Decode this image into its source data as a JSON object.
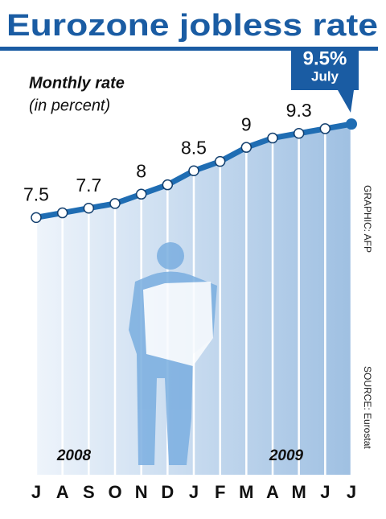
{
  "chart_data": {
    "type": "line",
    "title": "Eurozone jobless rate",
    "subtitle": "Monthly rate",
    "unit_note": "(in percent)",
    "annotation": "July",
    "years": [
      "2008",
      "2009"
    ],
    "source": "SOURCE: Eurostat",
    "credit": "GRAPHIC: AFP",
    "categories": [
      "J",
      "A",
      "S",
      "O",
      "N",
      "D",
      "J",
      "F",
      "M",
      "A",
      "M",
      "J",
      "J"
    ],
    "series": [
      {
        "name": "Jobless rate",
        "color": "#1f6db3",
        "values": [
          7.5,
          7.6,
          7.7,
          7.8,
          8.0,
          8.2,
          8.5,
          8.7,
          9.0,
          9.2,
          9.3,
          9.4,
          9.5
        ],
        "value_labels": [
          "7.5",
          null,
          "7.7",
          null,
          "8",
          null,
          "8.5",
          null,
          "9",
          null,
          "9.3",
          null,
          "9.5%"
        ]
      }
    ],
    "ylim": [
      2,
      10.5
    ]
  }
}
